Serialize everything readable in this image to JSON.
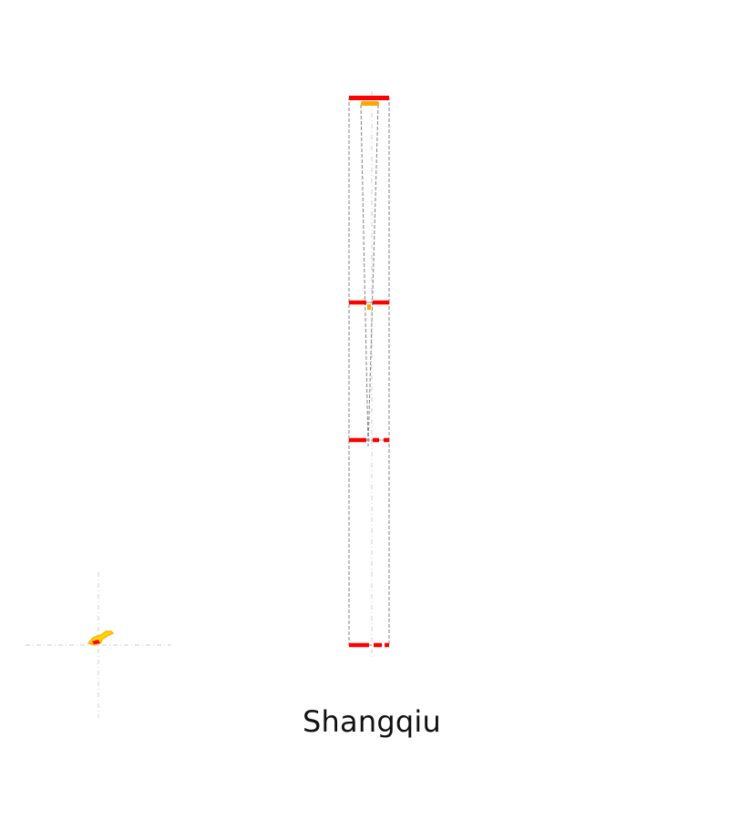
{
  "map": {
    "title": "Shangqiu",
    "colors": {
      "boundary": "#ff0000",
      "frame": "#808080",
      "guide": "#cccccc",
      "highlight": "#ffa500",
      "locator_fill": "#ffd700"
    }
  }
}
